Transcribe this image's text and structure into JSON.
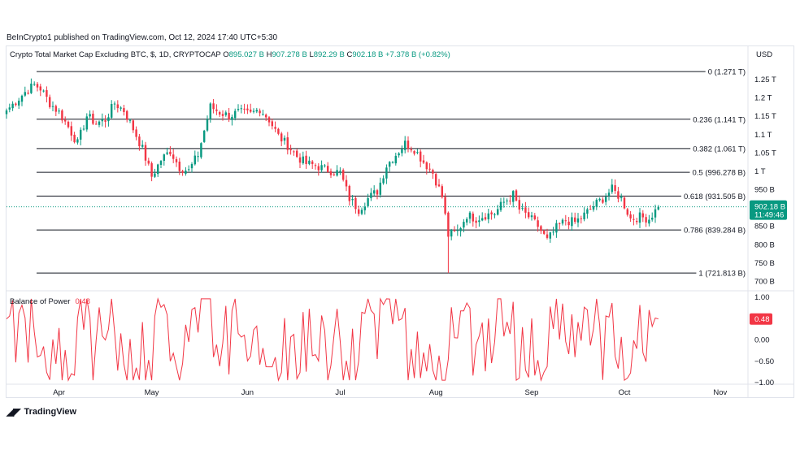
{
  "publisher_line": "BeInCrypto1 published on TradingView.com, Oct 12, 2024 17:40 UTC+5:30",
  "header": {
    "symbol": "Crypto Total Market Cap Excluding BTC, $, 1D, CRYPTOCAP",
    "open_label": "O",
    "open": "895.027 B",
    "high_label": "H",
    "high": "907.278 B",
    "low_label": "L",
    "low": "892.29 B",
    "close_label": "C",
    "close": "902.18 B",
    "change": "+7.378 B (+0.82%)"
  },
  "currency": "USD",
  "logo_text": "TradingView",
  "colors": {
    "up": "#089981",
    "down": "#f23645",
    "fib": "#131722",
    "bop": "#f23645",
    "grid": "#e0e3eb"
  },
  "price_badge": {
    "value": "902.18 B",
    "countdown": "11:49:46",
    "color": "#089981"
  },
  "bop_badge": {
    "value": "0.48",
    "color": "#f23645"
  },
  "chart_data": [
    {
      "type": "candlestick",
      "title": "Crypto Total Market Cap Excluding BTC, $, 1D, CRYPTOCAP",
      "unit": "B",
      "x_start": "2024-03-15",
      "x_end": "2024-10-12",
      "xlim": [
        "2024-03-15",
        "2024-11-10"
      ],
      "ylim": [
        680,
        1300
      ],
      "x_tick_labels": [
        {
          "date": "2024-04-01",
          "label": "Apr"
        },
        {
          "date": "2024-05-01",
          "label": "May"
        },
        {
          "date": "2024-06-01",
          "label": "Jun"
        },
        {
          "date": "2024-07-01",
          "label": "Jul"
        },
        {
          "date": "2024-08-01",
          "label": "Aug"
        },
        {
          "date": "2024-09-01",
          "label": "Sep"
        },
        {
          "date": "2024-10-01",
          "label": "Oct"
        },
        {
          "date": "2024-11-01",
          "label": "Nov"
        }
      ],
      "y_tick_labels": [
        {
          "value": 1250,
          "label": "1.25 T"
        },
        {
          "value": 1200,
          "label": "1.2 T"
        },
        {
          "value": 1150,
          "label": "1.15 T"
        },
        {
          "value": 1100,
          "label": "1.1 T"
        },
        {
          "value": 1050,
          "label": "1.05 T"
        },
        {
          "value": 1000,
          "label": "1 T"
        },
        {
          "value": 950,
          "label": "950 B"
        },
        {
          "value": 850,
          "label": "850 B"
        },
        {
          "value": 800,
          "label": "800 B"
        },
        {
          "value": 750,
          "label": "750 B"
        },
        {
          "value": 700,
          "label": "700 B"
        }
      ],
      "fib_levels": [
        {
          "ratio": "0",
          "value": 1271,
          "label": "0 (1.271 T)"
        },
        {
          "ratio": "0.236",
          "value": 1141,
          "label": "0.236 (1.141 T)"
        },
        {
          "ratio": "0.382",
          "value": 1061,
          "label": "0.382 (1.061 T)"
        },
        {
          "ratio": "0.5",
          "value": 996.278,
          "label": "0.5 (996.278 B)"
        },
        {
          "ratio": "0.618",
          "value": 931.505,
          "label": "0.618 (931.505 B)"
        },
        {
          "ratio": "0.786",
          "value": 839.284,
          "label": "0.786 (839.284 B)"
        },
        {
          "ratio": "1",
          "value": 721.813,
          "label": "1 (721.813 B)"
        }
      ],
      "close_anchors": [
        [
          "2024-03-15",
          1165
        ],
        [
          "2024-03-18",
          1190
        ],
        [
          "2024-03-21",
          1215
        ],
        [
          "2024-03-24",
          1235
        ],
        [
          "2024-03-26",
          1225
        ],
        [
          "2024-03-29",
          1185
        ],
        [
          "2024-04-01",
          1160
        ],
        [
          "2024-04-04",
          1120
        ],
        [
          "2024-04-07",
          1075
        ],
        [
          "2024-04-10",
          1150
        ],
        [
          "2024-04-13",
          1130
        ],
        [
          "2024-04-16",
          1140
        ],
        [
          "2024-04-19",
          1185
        ],
        [
          "2024-04-22",
          1165
        ],
        [
          "2024-04-25",
          1115
        ],
        [
          "2024-04-28",
          1060
        ],
        [
          "2024-05-01",
          985
        ],
        [
          "2024-05-04",
          1030
        ],
        [
          "2024-05-07",
          1055
        ],
        [
          "2024-05-10",
          1010
        ],
        [
          "2024-05-13",
          1000
        ],
        [
          "2024-05-16",
          1045
        ],
        [
          "2024-05-20",
          1175
        ],
        [
          "2024-05-23",
          1160
        ],
        [
          "2024-05-26",
          1150
        ],
        [
          "2024-05-29",
          1160
        ],
        [
          "2024-06-02",
          1155
        ],
        [
          "2024-06-05",
          1170
        ],
        [
          "2024-06-08",
          1140
        ],
        [
          "2024-06-11",
          1095
        ],
        [
          "2024-06-14",
          1070
        ],
        [
          "2024-06-17",
          1040
        ],
        [
          "2024-06-20",
          1020
        ],
        [
          "2024-06-23",
          1015
        ],
        [
          "2024-06-26",
          1005
        ],
        [
          "2024-07-01",
          995
        ],
        [
          "2024-07-04",
          925
        ],
        [
          "2024-07-07",
          895
        ],
        [
          "2024-07-10",
          925
        ],
        [
          "2024-07-13",
          945
        ],
        [
          "2024-07-16",
          1015
        ],
        [
          "2024-07-19",
          1045
        ],
        [
          "2024-07-22",
          1075
        ],
        [
          "2024-07-25",
          1060
        ],
        [
          "2024-07-28",
          1025
        ],
        [
          "2024-07-31",
          995
        ],
        [
          "2024-08-03",
          930
        ],
        [
          "2024-08-05",
          825
        ],
        [
          "2024-08-08",
          835
        ],
        [
          "2024-08-11",
          880
        ],
        [
          "2024-08-14",
          870
        ],
        [
          "2024-08-17",
          880
        ],
        [
          "2024-08-20",
          885
        ],
        [
          "2024-08-23",
          915
        ],
        [
          "2024-08-26",
          935
        ],
        [
          "2024-08-28",
          895
        ],
        [
          "2024-08-31",
          875
        ],
        [
          "2024-09-03",
          850
        ],
        [
          "2024-09-06",
          810
        ],
        [
          "2024-09-09",
          845
        ],
        [
          "2024-09-12",
          865
        ],
        [
          "2024-09-15",
          860
        ],
        [
          "2024-09-18",
          880
        ],
        [
          "2024-09-21",
          905
        ],
        [
          "2024-09-24",
          925
        ],
        [
          "2024-09-27",
          950
        ],
        [
          "2024-09-30",
          925
        ],
        [
          "2024-10-03",
          870
        ],
        [
          "2024-10-06",
          875
        ],
        [
          "2024-10-09",
          870
        ],
        [
          "2024-10-12",
          902.18
        ]
      ],
      "range_low": {
        "date": "2024-08-05",
        "value": 721.813
      },
      "last_candle": {
        "date": "2024-10-12",
        "open": 895.027,
        "high": 907.278,
        "low": 892.29,
        "close": 902.18
      }
    },
    {
      "type": "line",
      "title": "Balance of Power",
      "current_value": "0.48",
      "ylim": [
        -1.1,
        1.1
      ],
      "y_tick_labels": [
        {
          "value": 1.0,
          "label": "1.00"
        },
        {
          "value": 0.5,
          "label": "0.50"
        },
        {
          "value": 0.0,
          "label": "0.00"
        },
        {
          "value": -0.5,
          "label": "−0.50"
        },
        {
          "value": -1.0,
          "label": "−1.00"
        }
      ]
    }
  ]
}
